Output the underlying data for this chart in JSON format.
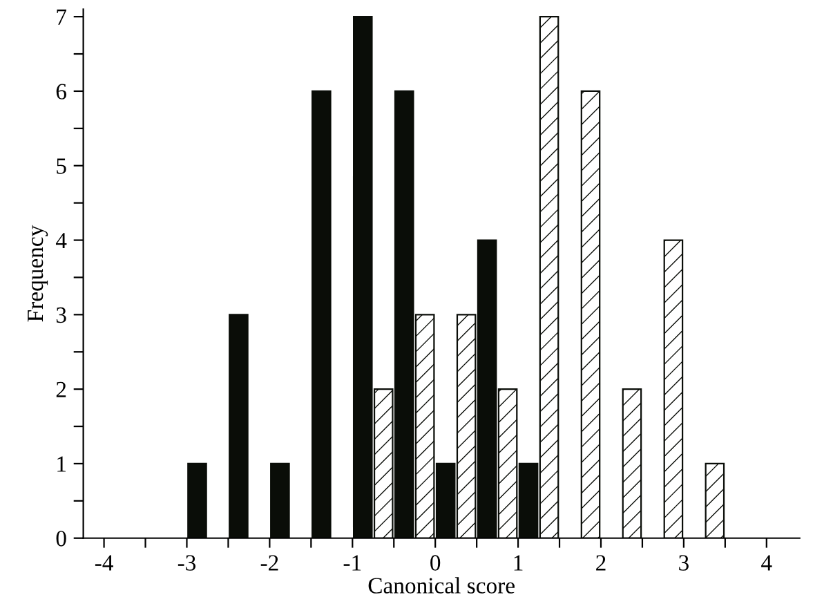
{
  "chart_data": {
    "type": "bar",
    "xlabel": "Canonical score",
    "ylabel": "Frequency",
    "series": [
      {
        "color": "#0a0d08",
        "x": [
          -2.875,
          -2.375,
          -1.875,
          -1.375,
          -0.875,
          -0.375,
          0.125,
          0.625,
          1.125
        ],
        "values": [
          1,
          3,
          1,
          6,
          7,
          6,
          1,
          4,
          1
        ]
      },
      {
        "color": "#0a0d08",
        "x": [
          -0.625,
          -0.125,
          0.375,
          0.875,
          1.375,
          1.875,
          2.375,
          2.875,
          3.375
        ],
        "values": [
          2,
          3,
          3,
          2,
          7,
          6,
          2,
          4,
          1
        ]
      }
    ],
    "xlim": [
      -4.25,
      4.4
    ],
    "ylim": [
      0,
      7.1
    ],
    "xticks": [
      -4,
      {
        "value": -3.5,
        "label": null
      },
      -3,
      {
        "value": -2.5,
        "label": null
      },
      -2,
      {
        "value": -1.5,
        "label": null
      },
      -1,
      {
        "value": -0.5,
        "label": null
      },
      0,
      {
        "value": 0.5,
        "label": null
      },
      1,
      {
        "value": 1.5,
        "label": null
      },
      2,
      {
        "value": 2.5,
        "label": null
      },
      3,
      {
        "value": 3.5,
        "label": null
      },
      4
    ],
    "yticks": [
      0,
      {
        "value": 0.5,
        "label": null
      },
      1,
      {
        "value": 1.5,
        "label": null
      },
      2,
      {
        "value": 2.5,
        "label": null
      },
      3,
      {
        "value": 3.5,
        "label": null
      },
      4,
      {
        "value": 4.5,
        "label": null
      },
      5,
      {
        "value": 5.5,
        "label": null
      },
      6,
      {
        "value": 6.5,
        "label": null
      },
      7
    ],
    "grid": false,
    "legend": false
  }
}
